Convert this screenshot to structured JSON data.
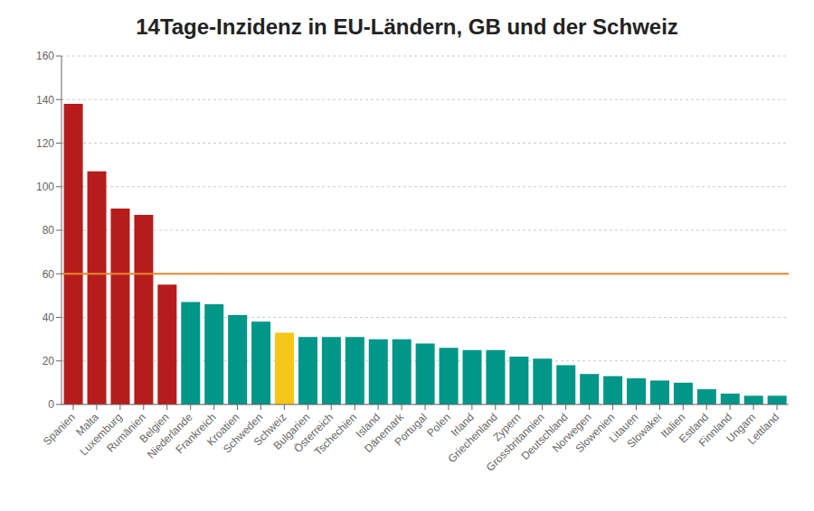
{
  "chart_data": {
    "type": "bar",
    "title": "14Tage-Inzidenz in EU-Ländern, GB und der Schweiz",
    "categories": [
      "Spanien",
      "Malta",
      "Luxemburg",
      "Rumänien",
      "Belgien",
      "Niederlande",
      "Frankreich",
      "Kroatien",
      "Schweden",
      "Schweiz",
      "Bulgarien",
      "Österreich",
      "Tschechien",
      "Island",
      "Dänemark",
      "Portugal",
      "Polen",
      "Irland",
      "Griechenland",
      "Zypern",
      "Grossbritannien",
      "Deutschland",
      "Norwegen",
      "Slowenien",
      "Litauen",
      "Slowakei",
      "Italien",
      "Estland",
      "Finnland",
      "Ungarn",
      "Lettland"
    ],
    "values": [
      138,
      107,
      90,
      87,
      55,
      47,
      46,
      41,
      38,
      33,
      31,
      31,
      31,
      30,
      30,
      28,
      26,
      25,
      25,
      22,
      21,
      18,
      14,
      13,
      12,
      11,
      10,
      7,
      5,
      4,
      4
    ],
    "colors": [
      "#b71c1c",
      "#b71c1c",
      "#b71c1c",
      "#b71c1c",
      "#b71c1c",
      "#009688",
      "#009688",
      "#009688",
      "#009688",
      "#f5c518",
      "#009688",
      "#009688",
      "#009688",
      "#009688",
      "#009688",
      "#009688",
      "#009688",
      "#009688",
      "#009688",
      "#009688",
      "#009688",
      "#009688",
      "#009688",
      "#009688",
      "#009688",
      "#009688",
      "#009688",
      "#009688",
      "#009688",
      "#009688",
      "#009688"
    ],
    "threshold": {
      "value": 60,
      "color": "#e8872a"
    },
    "ylim": [
      0,
      160
    ],
    "yticks": [
      0,
      20,
      40,
      60,
      80,
      100,
      120,
      140,
      160
    ],
    "grid": true
  }
}
